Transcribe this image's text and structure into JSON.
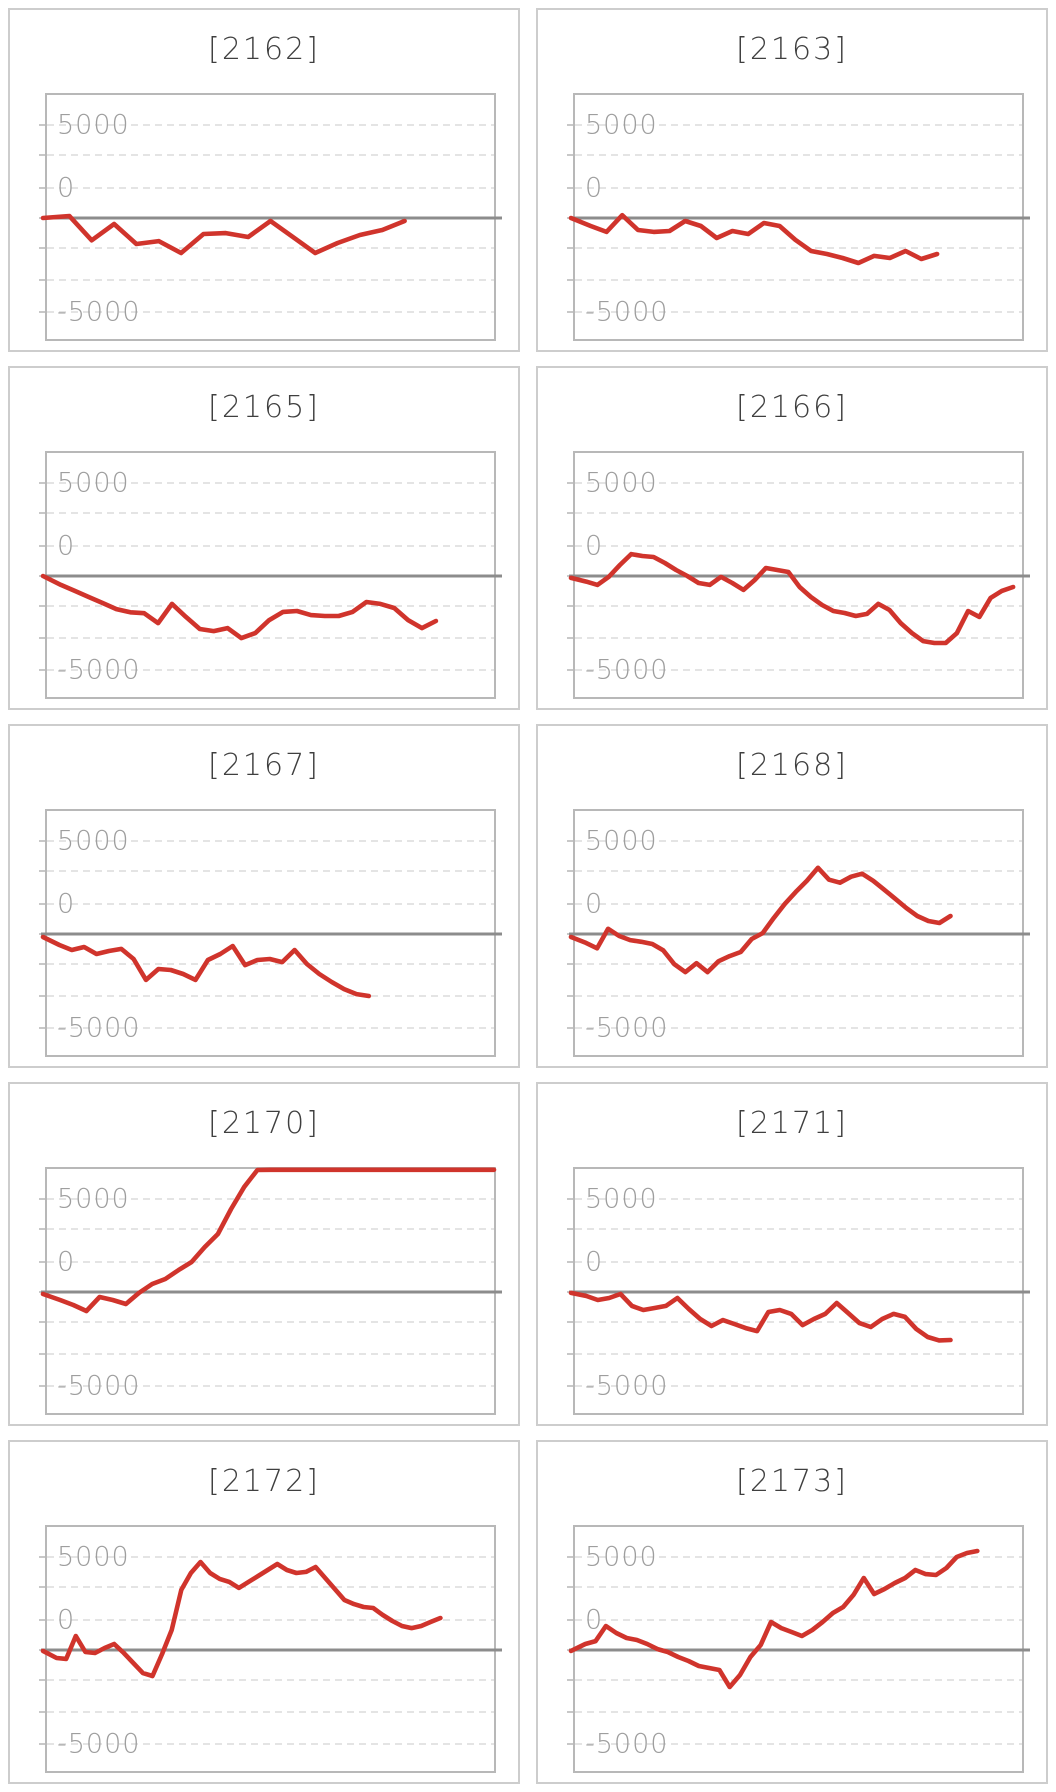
{
  "page": {
    "background": "#ffffff"
  },
  "style": {
    "line_color": "#d0342c",
    "grid_color": "#dcdcdc",
    "zero_line_color": "#8c8c8c",
    "plot_border_color": "#b8b8b8",
    "card_border_color": "#cdcdcd",
    "title_color": "#3f3f3f",
    "tick_label_color": "#9e9e9e"
  },
  "chart_data": {
    "type": "line",
    "ylim": [
      -6612,
      6612
    ],
    "y_tick_labels": [
      "5000",
      "0",
      "-5000"
    ],
    "y_tick_values": [
      5000,
      0,
      -5000
    ],
    "grid": "dashed-horizontal",
    "legend": "none",
    "series": [
      {
        "title": "[2162]",
        "end_frac": 0.8,
        "values": [
          0,
          100,
          -1200,
          -320,
          -1400,
          -1240,
          -1880,
          -860,
          -810,
          -1020,
          -160,
          -1020,
          -1880,
          -1345,
          -915,
          -645,
          -160
        ]
      },
      {
        "title": "[2163]",
        "end_frac": 0.81,
        "values": [
          0,
          -430,
          -750,
          150,
          -645,
          -750,
          -700,
          -160,
          -430,
          -1075,
          -700,
          -860,
          -270,
          -430,
          -1180,
          -1775,
          -1935,
          -2150,
          -2420,
          -2040,
          -2150,
          -1775,
          -2205,
          -1935
        ]
      },
      {
        "title": "[2165]",
        "end_frac": 0.87,
        "values": [
          0,
          -480,
          -800,
          -1130,
          -1450,
          -1780,
          -1950,
          -2000,
          -2530,
          -1500,
          -2200,
          -2850,
          -2960,
          -2800,
          -3340,
          -3070,
          -2370,
          -1930,
          -1880,
          -2100,
          -2150,
          -2150,
          -1930,
          -1400,
          -1500,
          -1720,
          -2370,
          -2800,
          -2420
        ]
      },
      {
        "title": "[2166]",
        "end_frac": 0.98,
        "values": [
          -100,
          -300,
          -480,
          -50,
          590,
          1180,
          1075,
          1020,
          700,
          320,
          0,
          -375,
          -480,
          -50,
          -375,
          -750,
          -215,
          430,
          320,
          215,
          -590,
          -1130,
          -1560,
          -1880,
          -1990,
          -2150,
          -2040,
          -1500,
          -1830,
          -2530,
          -3070,
          -3500,
          -3600,
          -3600,
          -3070,
          -1880,
          -2200,
          -1180,
          -800,
          -590
        ]
      },
      {
        "title": "[2167]",
        "end_frac": 0.72,
        "values": [
          -160,
          -590,
          -860,
          -700,
          -1075,
          -915,
          -800,
          -1345,
          -2470,
          -1880,
          -1935,
          -2150,
          -2470,
          -1400,
          -1075,
          -645,
          -1670,
          -1400,
          -1345,
          -1510,
          -860,
          -1615,
          -2150,
          -2580,
          -2960,
          -3230,
          -3335
        ]
      },
      {
        "title": "[2168]",
        "end_frac": 0.84,
        "values": [
          -160,
          -480,
          -770,
          280,
          -110,
          -330,
          -420,
          -540,
          -880,
          -1630,
          -2050,
          -1570,
          -2050,
          -1460,
          -1190,
          -970,
          -270,
          50,
          865,
          1620,
          2270,
          2860,
          3560,
          2920,
          2760,
          3080,
          3240,
          2860,
          2380,
          1890,
          1400,
          970,
          700,
          590,
          970
        ]
      },
      {
        "title": "[2170]",
        "end_frac": 1.0,
        "values": [
          -110,
          -430,
          -700,
          -1020,
          -270,
          -430,
          -645,
          -50,
          430,
          700,
          1180,
          1615,
          2420,
          3120,
          4465,
          5650,
          6560,
          6610,
          6610,
          6610,
          6610,
          6610,
          6610,
          6610,
          6610,
          6610,
          6610,
          6610,
          6610,
          6610,
          6610,
          6610,
          6610,
          6610,
          6610
        ]
      },
      {
        "title": "[2171]",
        "end_frac": 0.84,
        "values": [
          -50,
          -215,
          -430,
          -320,
          -110,
          -750,
          -970,
          -860,
          -750,
          -320,
          -915,
          -1450,
          -1830,
          -1510,
          -1720,
          -1940,
          -2100,
          -1075,
          -970,
          -1180,
          -1780,
          -1450,
          -1180,
          -590,
          -1130,
          -1670,
          -1880,
          -1450,
          -1180,
          -1340,
          -1990,
          -2420,
          -2600,
          -2580
        ]
      },
      {
        "title": "[2172]",
        "end_frac": 0.88,
        "values": [
          -50,
          -430,
          -480,
          750,
          -110,
          -160,
          110,
          320,
          -160,
          -700,
          -1240,
          -1400,
          -215,
          1075,
          3230,
          4140,
          4730,
          4140,
          3820,
          3660,
          3340,
          3660,
          3980,
          4300,
          4625,
          4300,
          4140,
          4200,
          4465,
          3870,
          3280,
          2690,
          2470,
          2310,
          2260,
          1880,
          1560,
          1290,
          1180,
          1290,
          1510,
          1720
        ]
      },
      {
        "title": "[2173]",
        "end_frac": 0.9,
        "values": [
          -50,
          320,
          480,
          1290,
          915,
          645,
          540,
          320,
          50,
          -110,
          -375,
          -590,
          -860,
          -970,
          -1075,
          -1990,
          -1345,
          -375,
          270,
          1505,
          1180,
          970,
          750,
          1075,
          1505,
          1990,
          2310,
          2960,
          3870,
          3010,
          3280,
          3600,
          3870,
          4300,
          4080,
          4030,
          4410,
          5000,
          5215,
          5325
        ]
      }
    ]
  }
}
